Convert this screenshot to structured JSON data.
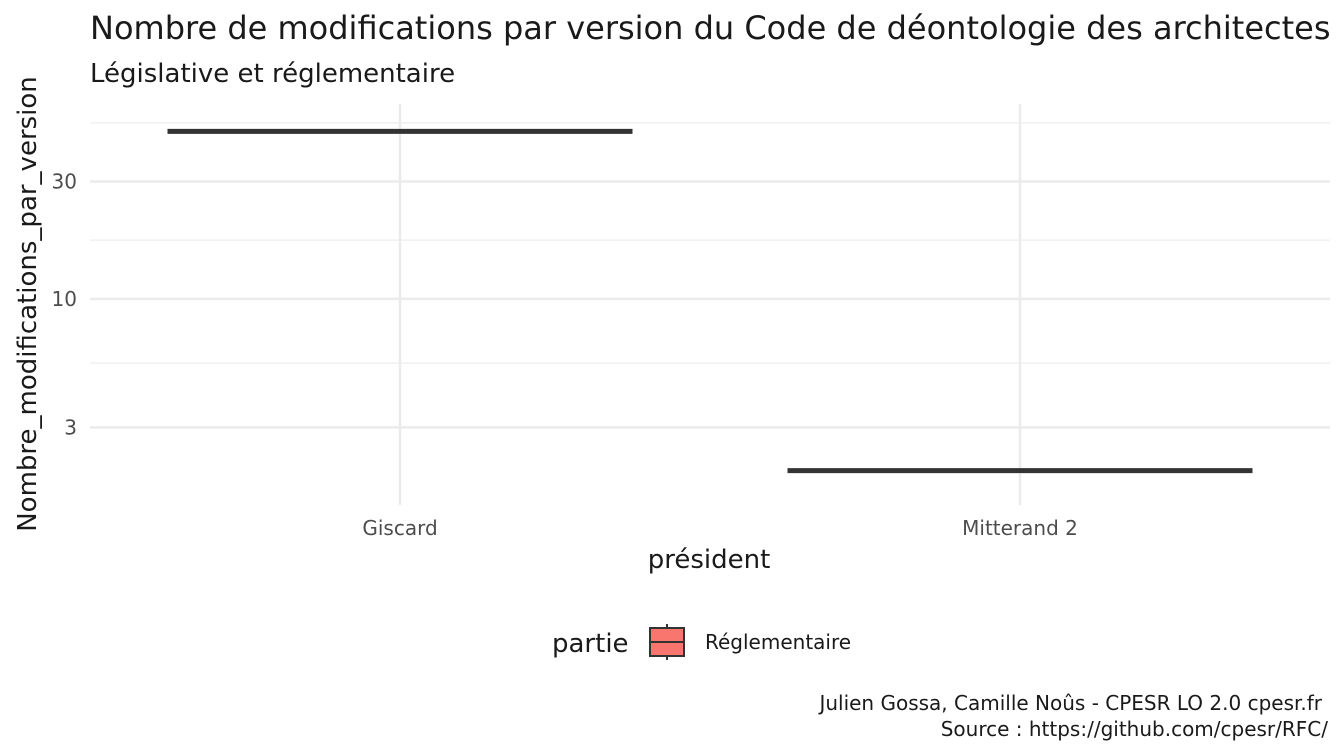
{
  "chart_data": {
    "type": "boxplot",
    "title": "Nombre de modifications par version du Code de déontologie des architectes",
    "subtitle": "Législative et réglementaire",
    "xlabel": "président",
    "ylabel": "Nombre_modifications_par_version",
    "y_scale": "log10",
    "y_ticks": [
      3,
      10,
      30
    ],
    "y_range": [
      1.45,
      62
    ],
    "categories": [
      "Giscard",
      "Mitterand 2"
    ],
    "series": [
      {
        "name": "Réglementaire",
        "color": "#F8766D",
        "values": [
          48,
          2
        ]
      }
    ],
    "legend": {
      "title": "partie",
      "position": "bottom",
      "items": [
        "Réglementaire"
      ]
    },
    "grid": true,
    "caption": [
      "Julien Gossa, Camille Noûs - CPESR LO 2.0 cpesr.fr",
      "Source : https://github.com/cpesr/RFC/"
    ]
  }
}
